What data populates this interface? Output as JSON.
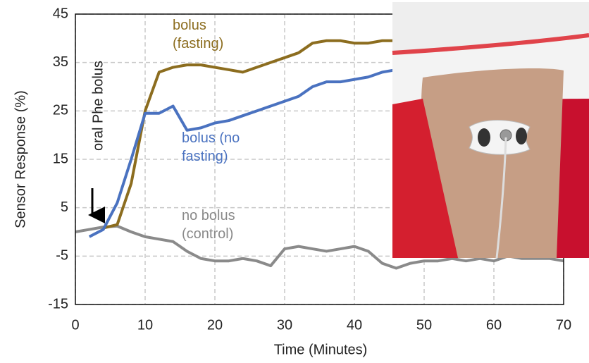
{
  "chart_data": {
    "type": "line",
    "x": [
      0,
      2,
      4,
      6,
      8,
      10,
      12,
      14,
      16,
      18,
      20,
      22,
      24,
      26,
      28,
      30,
      32,
      34,
      36,
      38,
      40,
      42,
      44,
      46,
      48,
      50,
      52,
      54,
      56,
      58,
      60,
      62,
      64,
      66,
      68,
      70
    ],
    "series": [
      {
        "name": "no bolus (control)",
        "color": "#8a8a8a",
        "values": [
          0,
          0.5,
          1,
          1.2,
          0,
          -1,
          -1.5,
          -2,
          -4,
          -5.5,
          -6,
          -6,
          -5.5,
          -6,
          -7,
          -3.5,
          -3,
          -3.5,
          -4,
          -3.5,
          -3,
          -4,
          -6.5,
          -7.5,
          -6.5,
          -6,
          -6,
          -5.5,
          -6,
          -5.5,
          -6,
          -5,
          -5.5,
          -5.5,
          -5.5,
          -6
        ]
      },
      {
        "name": "bolus (fasting)",
        "color": "#8c6d1f",
        "values": [
          null,
          null,
          0.8,
          1.5,
          10,
          25,
          33,
          34,
          34.5,
          34.5,
          34,
          33.5,
          33,
          34,
          35,
          36,
          37,
          39,
          39.5,
          39.5,
          39,
          39,
          39.5,
          39.5,
          null,
          null,
          null,
          null,
          null,
          null,
          null,
          null,
          null,
          null,
          null,
          null
        ]
      },
      {
        "name": "bolus (no fasting)",
        "color": "#4a72c0",
        "values": [
          null,
          -1,
          0.5,
          6,
          15,
          24.5,
          24.5,
          26,
          21,
          21.5,
          22.5,
          23,
          24,
          25,
          26,
          27,
          28,
          30,
          31,
          31,
          31.5,
          32,
          33,
          33.5,
          null,
          null,
          null,
          null,
          null,
          null,
          null,
          null,
          null,
          null,
          null,
          null
        ]
      }
    ],
    "annotation": "oral Phe bolus",
    "xlabel": "Time (Minutes)",
    "ylabel": "Sensor Response (%)",
    "xlim": [
      0,
      70
    ],
    "xticks": [
      0,
      10,
      20,
      30,
      40,
      50,
      60,
      70
    ],
    "ylim": [
      -15,
      45
    ],
    "yticks": [
      -15,
      -5,
      5,
      15,
      25,
      35,
      45
    ],
    "grid": true
  }
}
